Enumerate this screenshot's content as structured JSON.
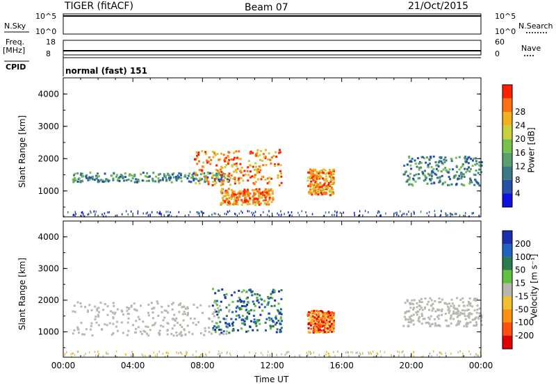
{
  "header": {
    "radar": "TIGER (fitACF)",
    "beam": "Beam 07",
    "date": "21/Oct/2015"
  },
  "strip": {
    "nsky_label": "N.Sky",
    "nsky_ticks": [
      "10^5",
      "10^0"
    ],
    "nsearch_label": "N.Search",
    "nsearch_ticks": [
      "10^5",
      "10^0"
    ],
    "freq_label_1": "Freq.",
    "freq_label_2": "[MHz]",
    "freq_ticks": [
      "18",
      "8"
    ],
    "nave_label": "Nave",
    "nave_ticks": [
      "60",
      "0"
    ],
    "cpid_label": "CPID",
    "cpid_value": "normal (fast) 151"
  },
  "chart_data": [
    {
      "type": "heatmap",
      "title": "",
      "ylabel": "Slant Range [km]",
      "xlabel": "Time UT",
      "yticks": [
        "1000",
        "2000",
        "3000",
        "4000"
      ],
      "xticks": [
        "00:00",
        "04:00",
        "08:00",
        "12:00",
        "16:00",
        "20:00",
        "00:00"
      ],
      "xlim": [
        0,
        24
      ],
      "ylim": [
        200,
        4500
      ],
      "colorbar": {
        "label": "Power [dB]",
        "ticks": [
          "4",
          "8",
          "12",
          "16",
          "20",
          "24",
          "28"
        ],
        "colors": [
          "#1010e0",
          "#2850a8",
          "#3a7a86",
          "#58a06e",
          "#78c050",
          "#c8d040",
          "#f0b020",
          "#ff7010",
          "#ff2000"
        ]
      },
      "echo_regions": [
        {
          "t": [
            0.5,
            9.5
          ],
          "r": [
            1300,
            1600
          ],
          "level": "12-20 dB"
        },
        {
          "t": [
            7.5,
            12.5
          ],
          "r": [
            1200,
            2300
          ],
          "level": "20-28 dB"
        },
        {
          "t": [
            9,
            12
          ],
          "r": [
            600,
            1100
          ],
          "level": "20-28 dB"
        },
        {
          "t": [
            14,
            15.5
          ],
          "r": [
            900,
            1700
          ],
          "level": "16-24 dB"
        },
        {
          "t": [
            19.5,
            24
          ],
          "r": [
            1200,
            2100
          ],
          "level": "4-12 dB"
        }
      ]
    },
    {
      "type": "heatmap",
      "title": "",
      "ylabel": "Slant Range [km]",
      "xlabel": "Time UT",
      "yticks": [
        "1000",
        "2000",
        "3000",
        "4000"
      ],
      "xticks": [
        "00:00",
        "04:00",
        "08:00",
        "12:00",
        "16:00",
        "20:00",
        "00:00"
      ],
      "xlim": [
        0,
        24
      ],
      "ylim": [
        200,
        4500
      ],
      "colorbar": {
        "label": "Velocity [m s⁻¹]",
        "ticks": [
          "200",
          "100",
          "50",
          "15",
          "-15",
          "-50",
          "-100",
          "-200"
        ],
        "colors": [
          "#1a2fb0",
          "#2060c0",
          "#2e7a50",
          "#60c040",
          "#b8b8b0",
          "#f0c030",
          "#ff9010",
          "#ff5010",
          "#e00000"
        ]
      },
      "echo_regions": [
        {
          "t": [
            0.5,
            9.5
          ],
          "r": [
            900,
            2000
          ],
          "level": "ground scatter"
        },
        {
          "t": [
            8.5,
            12.5
          ],
          "r": [
            1000,
            2400
          ],
          "level": "+100 to +200"
        },
        {
          "t": [
            14,
            15.5
          ],
          "r": [
            1000,
            1700
          ],
          "level": "-50 to -200"
        },
        {
          "t": [
            19.5,
            24
          ],
          "r": [
            1200,
            2100
          ],
          "level": "ground scatter"
        }
      ]
    }
  ],
  "xaxis_title": "Time UT"
}
